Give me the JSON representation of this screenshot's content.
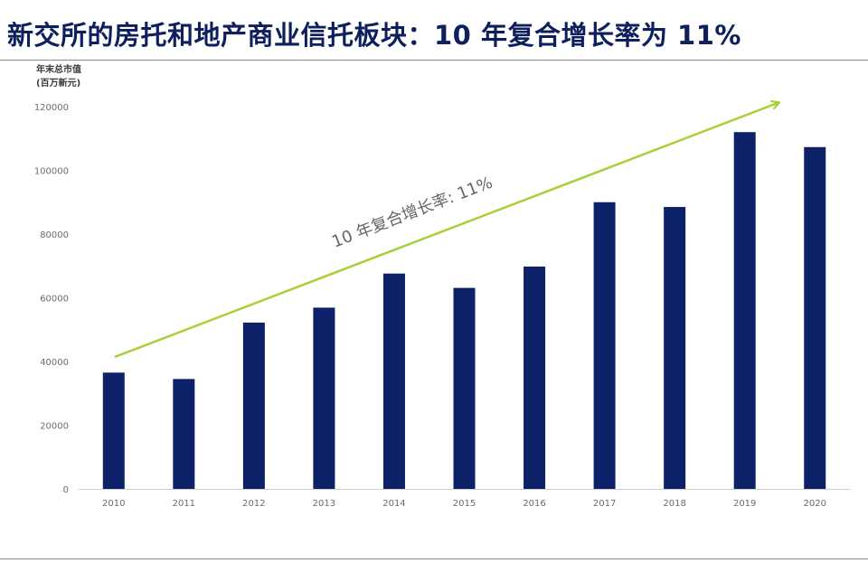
{
  "page": {
    "title": "新交所的房托和地产商业信托板块：10 年复合增长率为 11%"
  },
  "chart_data": {
    "type": "bar",
    "title": "新交所的房托和地产商业信托板块：10 年复合增长率为 11%",
    "ylabel_line1": "年末总市值",
    "ylabel_line2": "(百万新元)",
    "xlabel": "",
    "categories": [
      "2010",
      "2011",
      "2012",
      "2013",
      "2014",
      "2015",
      "2016",
      "2017",
      "2018",
      "2019",
      "2020"
    ],
    "values": [
      36500,
      34500,
      52200,
      56900,
      67600,
      63100,
      69800,
      90000,
      88500,
      112000,
      107300
    ],
    "ylim": [
      0,
      120000
    ],
    "yticks": [
      0,
      20000,
      40000,
      60000,
      80000,
      100000,
      120000
    ],
    "grid": false,
    "bar_color": "#0d2168",
    "annotation": {
      "text": "10 年复合增长率: 11%",
      "color": "#a8d034"
    }
  }
}
